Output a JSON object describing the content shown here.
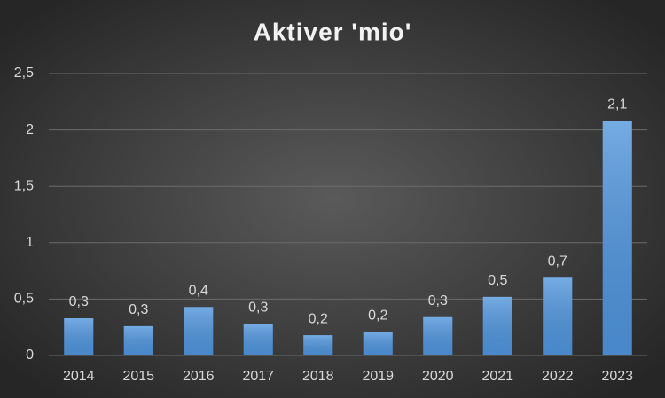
{
  "chart_data": {
    "type": "bar",
    "title": "Aktiver 'mio'",
    "categories": [
      "2014",
      "2015",
      "2016",
      "2017",
      "2018",
      "2019",
      "2020",
      "2021",
      "2022",
      "2023"
    ],
    "values": [
      0.33,
      0.26,
      0.43,
      0.28,
      0.18,
      0.21,
      0.34,
      0.52,
      0.69,
      2.08
    ],
    "value_labels": [
      "0,3",
      "0,3",
      "0,4",
      "0,3",
      "0,2",
      "0,2",
      "0,3",
      "0,5",
      "0,7",
      "2,1"
    ],
    "color": "#4f94dc",
    "ylim": [
      0,
      2.5
    ],
    "yticks": [
      0,
      {
        "value": 0.5,
        "label": "0,5"
      },
      1,
      {
        "value": 1.5,
        "label": "1,5"
      },
      2,
      {
        "value": 2.5,
        "label": "2,5"
      }
    ],
    "grid": true
  }
}
